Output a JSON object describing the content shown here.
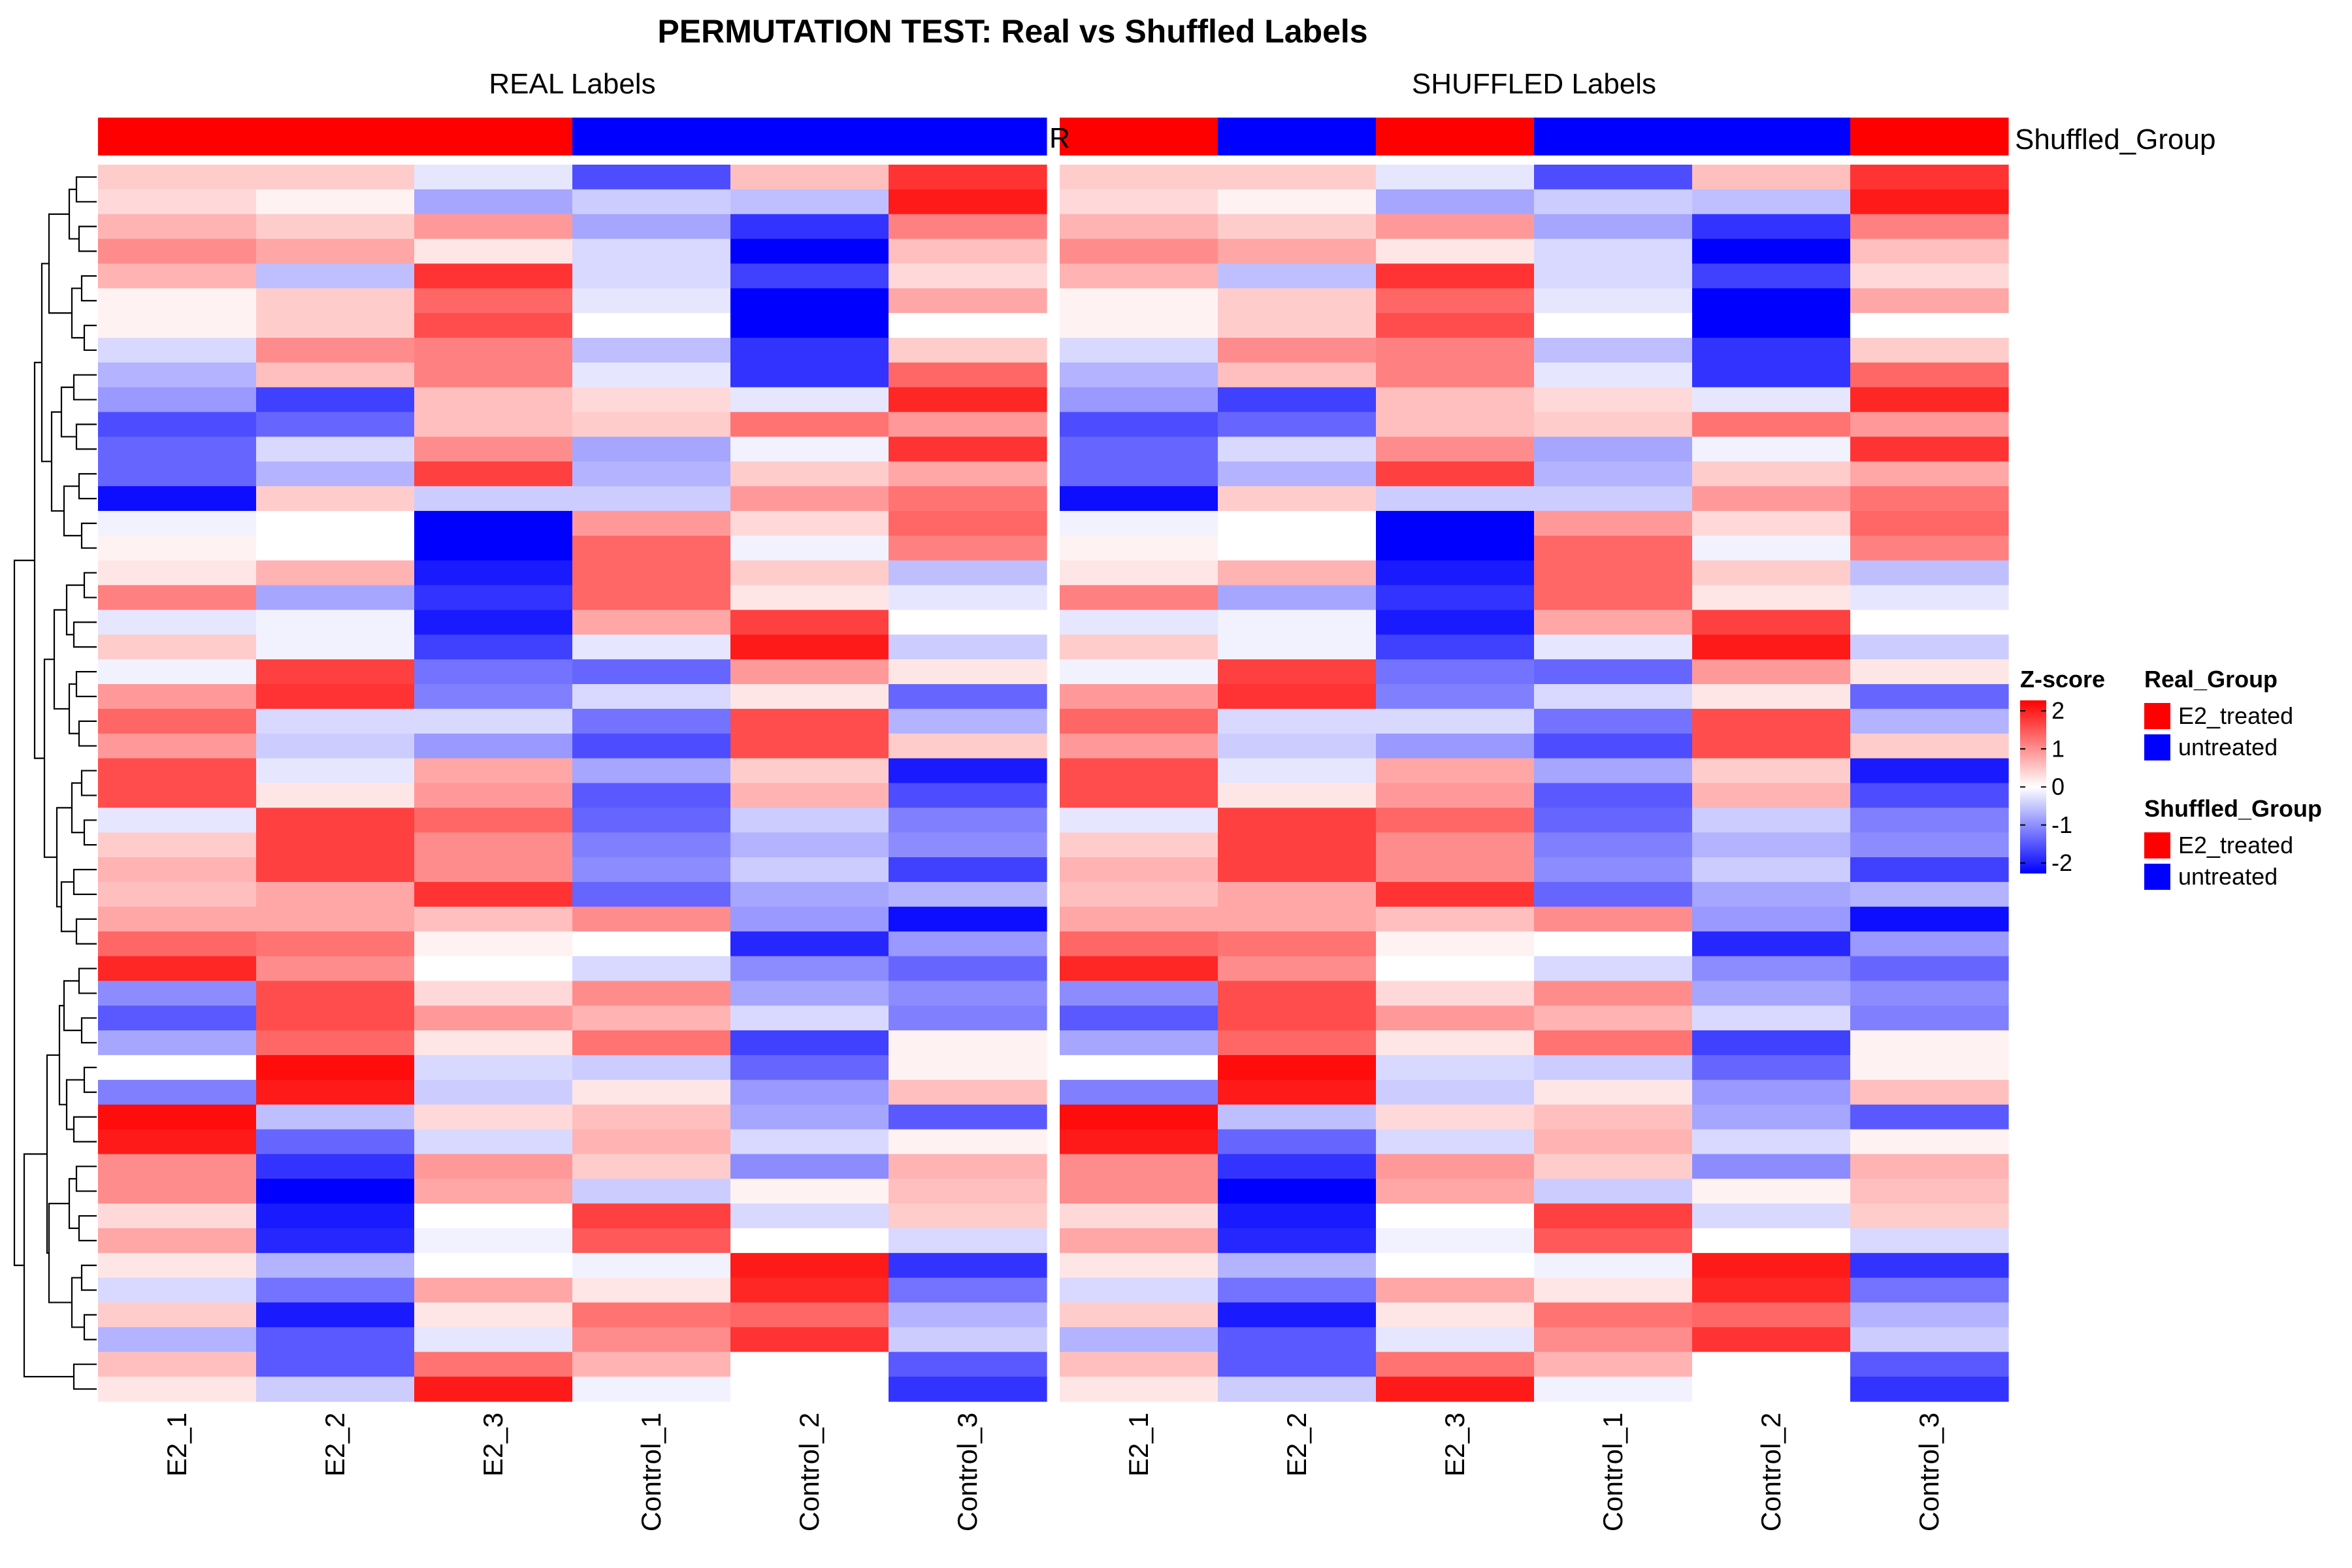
{
  "chart_data": {
    "type": "heatmap",
    "title": "PERMUTATION TEST: Real vs Shuffled Labels",
    "panels": [
      {
        "title": "REAL Labels",
        "annotation_name": "Real_Group",
        "annotation_label_fragment": "R",
        "columns": [
          "E2_1",
          "E2_2",
          "E2_3",
          "Control_1",
          "Control_2",
          "Control_3"
        ],
        "column_groups": [
          "E2_treated",
          "E2_treated",
          "E2_treated",
          "untreated",
          "untreated",
          "untreated"
        ]
      },
      {
        "title": "SHUFFLED Labels",
        "annotation_name": "Shuffled_Group",
        "annotation_label": "Shuffled_Group",
        "columns": [
          "E2_1",
          "E2_2",
          "E2_3",
          "Control_1",
          "Control_2",
          "Control_3"
        ],
        "column_groups": [
          "E2_treated",
          "untreated",
          "E2_treated",
          "untreated",
          "untreated",
          "E2_treated"
        ]
      }
    ],
    "rows": 50,
    "values": [
      [
        0.4,
        0.4,
        -0.2,
        -1.4,
        0.5,
        1.6
      ],
      [
        0.3,
        0.1,
        -0.7,
        -0.4,
        -0.5,
        1.8
      ],
      [
        0.6,
        0.4,
        0.8,
        -0.7,
        -1.6,
        1.0
      ],
      [
        0.9,
        0.7,
        0.2,
        -0.3,
        -2.0,
        0.5
      ],
      [
        0.6,
        -0.5,
        1.6,
        -0.3,
        -1.5,
        0.3
      ],
      [
        0.1,
        0.4,
        1.2,
        -0.2,
        -2.0,
        0.7
      ],
      [
        0.1,
        0.4,
        1.4,
        0.0,
        -2.0,
        0.0
      ],
      [
        -0.3,
        0.9,
        1.0,
        -0.5,
        -1.6,
        0.4
      ],
      [
        -0.6,
        0.5,
        1.0,
        -0.2,
        -1.6,
        1.2
      ],
      [
        -0.8,
        -1.5,
        0.5,
        0.3,
        -0.2,
        1.7
      ],
      [
        -1.4,
        -1.2,
        0.5,
        0.4,
        1.1,
        0.8
      ],
      [
        -1.2,
        -0.3,
        0.9,
        -0.7,
        -0.1,
        1.6
      ],
      [
        -1.2,
        -0.6,
        1.5,
        -0.6,
        0.4,
        0.7
      ],
      [
        -1.9,
        0.4,
        -0.4,
        -0.4,
        0.8,
        1.1
      ],
      [
        -0.1,
        0.0,
        -2.0,
        0.8,
        0.3,
        1.2
      ],
      [
        0.1,
        0.0,
        -2.0,
        1.2,
        -0.1,
        1.0
      ],
      [
        0.2,
        0.6,
        -1.8,
        1.2,
        0.4,
        -0.5
      ],
      [
        1.0,
        -0.7,
        -1.6,
        1.2,
        0.2,
        -0.2
      ],
      [
        -0.2,
        -0.1,
        -1.8,
        0.7,
        1.5,
        0.0
      ],
      [
        0.4,
        -0.1,
        -1.5,
        -0.2,
        1.8,
        -0.4
      ],
      [
        -0.1,
        1.5,
        -1.1,
        -1.2,
        0.8,
        0.2
      ],
      [
        0.8,
        1.6,
        -1.0,
        -0.3,
        0.2,
        -1.2
      ],
      [
        1.2,
        -0.3,
        -0.3,
        -1.1,
        1.4,
        -0.6
      ],
      [
        0.8,
        -0.4,
        -0.8,
        -1.4,
        1.4,
        0.4
      ],
      [
        1.4,
        -0.2,
        0.7,
        -0.7,
        0.4,
        -1.8
      ],
      [
        1.4,
        0.2,
        0.8,
        -1.3,
        0.6,
        -1.4
      ],
      [
        -0.2,
        1.5,
        1.2,
        -1.2,
        -0.4,
        -1.0
      ],
      [
        0.4,
        1.5,
        0.9,
        -1.0,
        -0.6,
        -0.9
      ],
      [
        0.6,
        1.5,
        0.9,
        -0.9,
        -0.4,
        -1.5
      ],
      [
        0.5,
        0.7,
        1.6,
        -1.2,
        -0.7,
        -0.6
      ],
      [
        0.7,
        0.7,
        0.5,
        0.9,
        -0.8,
        -1.9
      ],
      [
        1.2,
        1.1,
        0.1,
        0.0,
        -1.7,
        -0.8
      ],
      [
        1.7,
        0.9,
        0.0,
        -0.3,
        -0.9,
        -1.2
      ],
      [
        -0.9,
        1.4,
        0.3,
        0.9,
        -0.7,
        -0.9
      ],
      [
        -1.3,
        1.4,
        0.8,
        0.6,
        -0.3,
        -1.0
      ],
      [
        -0.7,
        1.2,
        0.2,
        1.1,
        -1.5,
        0.1
      ],
      [
        0.0,
        1.9,
        -0.3,
        -0.4,
        -1.2,
        0.1
      ],
      [
        -1.0,
        1.8,
        -0.4,
        0.2,
        -0.8,
        0.5
      ],
      [
        1.9,
        -0.5,
        0.3,
        0.5,
        -0.7,
        -1.3
      ],
      [
        1.8,
        -1.2,
        -0.3,
        0.6,
        -0.3,
        0.1
      ],
      [
        0.9,
        -1.6,
        0.8,
        0.4,
        -0.9,
        0.6
      ],
      [
        0.9,
        -2.0,
        0.7,
        -0.4,
        0.1,
        0.5
      ],
      [
        0.3,
        -1.8,
        0.0,
        1.5,
        -0.3,
        0.4
      ],
      [
        0.7,
        -1.7,
        -0.1,
        1.3,
        0.0,
        -0.3
      ],
      [
        0.2,
        -0.6,
        0.0,
        -0.1,
        1.8,
        -1.6
      ],
      [
        -0.3,
        -1.1,
        0.7,
        0.2,
        1.7,
        -1.1
      ],
      [
        0.4,
        -1.8,
        0.2,
        1.1,
        1.2,
        -0.6
      ],
      [
        -0.6,
        -1.3,
        -0.2,
        0.9,
        1.6,
        -0.4
      ],
      [
        0.5,
        -1.3,
        1.1,
        0.6,
        0.0,
        -1.3
      ],
      [
        0.2,
        -0.4,
        1.8,
        -0.1,
        0.0,
        -1.6
      ]
    ],
    "colorbar": {
      "title": "Z-score",
      "min": -2,
      "max": 2,
      "ticks": [
        "2",
        "1",
        "0",
        "-1",
        "-2"
      ],
      "colors": {
        "low": "#0000FF",
        "mid": "#FFFFFF",
        "high": "#FF0000"
      }
    },
    "legends": [
      {
        "title": "Real_Group",
        "items": [
          {
            "label": "E2_treated",
            "color": "#FF0000"
          },
          {
            "label": "untreated",
            "color": "#0000FF"
          }
        ]
      },
      {
        "title": "Shuffled_Group",
        "items": [
          {
            "label": "E2_treated",
            "color": "#FF0000"
          },
          {
            "label": "untreated",
            "color": "#0000FF"
          }
        ]
      }
    ],
    "group_colors": {
      "E2_treated": "#FF0000",
      "untreated": "#0000FF"
    },
    "row_dendrogram": true,
    "grid": false
  }
}
